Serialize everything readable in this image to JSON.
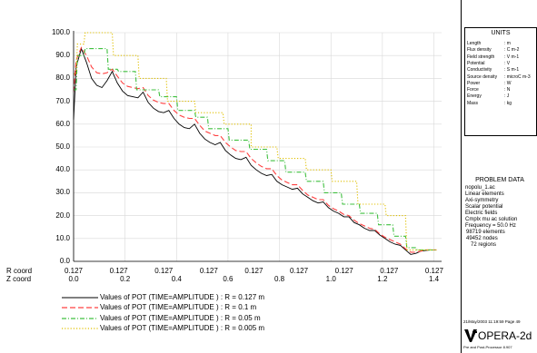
{
  "chart_data": {
    "type": "line",
    "title": "",
    "ylim": [
      0,
      100
    ],
    "y_ticks": [
      "0.0",
      "10.0",
      "20.0",
      "30.0",
      "40.0",
      "50.0",
      "60.0",
      "70.0",
      "80.0",
      "90.0",
      "100.0"
    ],
    "x_label_r": "R coord",
    "x_label_z": "Z coord",
    "r_ticks": [
      "0.127",
      "0.127",
      "0.127",
      "0.127",
      "0.127",
      "0.127",
      "0.127",
      "0.127",
      "0.127"
    ],
    "z_ticks": [
      "0.0",
      "0.2",
      "0.4",
      "0.6",
      "0.8",
      "1.0",
      "1.2",
      "1.4"
    ],
    "xlim": [
      0,
      1.43
    ],
    "grid": true,
    "series": [
      {
        "name": "Values of POT (TIME=AMPLITUDE   ) : R = 0.127 m",
        "color": "#000000",
        "dash": "solid",
        "x": [
          0.0,
          0.01,
          0.03,
          0.05,
          0.07,
          0.09,
          0.11,
          0.13,
          0.15,
          0.17,
          0.19,
          0.21,
          0.23,
          0.25,
          0.27,
          0.29,
          0.31,
          0.33,
          0.35,
          0.37,
          0.39,
          0.41,
          0.43,
          0.45,
          0.47,
          0.49,
          0.51,
          0.53,
          0.55,
          0.57,
          0.59,
          0.61,
          0.63,
          0.65,
          0.67,
          0.69,
          0.71,
          0.73,
          0.75,
          0.77,
          0.79,
          0.81,
          0.83,
          0.85,
          0.87,
          0.89,
          0.91,
          0.93,
          0.95,
          0.97,
          0.99,
          1.01,
          1.03,
          1.05,
          1.07,
          1.09,
          1.11,
          1.13,
          1.15,
          1.17,
          1.19,
          1.21,
          1.23,
          1.25,
          1.27,
          1.29,
          1.31,
          1.33,
          1.35,
          1.37,
          1.39,
          1.41
        ],
        "y": [
          62.0,
          85.0,
          93.0,
          87.0,
          80.0,
          77.0,
          76.0,
          79.0,
          83.0,
          78.0,
          74.5,
          72.5,
          72.0,
          71.5,
          74.0,
          69.5,
          67.0,
          65.5,
          65.0,
          66.0,
          62.5,
          60.0,
          58.5,
          58.0,
          60.0,
          56.0,
          53.5,
          52.0,
          51.0,
          52.0,
          48.5,
          46.5,
          45.0,
          44.5,
          45.5,
          42.0,
          40.0,
          38.5,
          37.5,
          38.0,
          35.0,
          33.5,
          32.5,
          31.5,
          32.0,
          29.5,
          28.0,
          26.5,
          25.5,
          26.0,
          23.5,
          22.0,
          21.0,
          19.5,
          19.5,
          17.0,
          16.0,
          14.5,
          13.5,
          13.5,
          11.5,
          10.0,
          8.5,
          7.5,
          7.0,
          5.0,
          3.0,
          3.5,
          4.5,
          4.8,
          5.0,
          5.0
        ]
      },
      {
        "name": "Values of POT (TIME=AMPLITUDE   ) : R = 0.1 m",
        "color": "#ff4040",
        "dash": "long-dash",
        "x": [
          0.0,
          0.01,
          0.03,
          0.05,
          0.07,
          0.09,
          0.11,
          0.13,
          0.15,
          0.17,
          0.19,
          0.21,
          0.23,
          0.25,
          0.27,
          0.29,
          0.31,
          0.33,
          0.35,
          0.37,
          0.39,
          0.41,
          0.43,
          0.45,
          0.47,
          0.49,
          0.51,
          0.53,
          0.55,
          0.57,
          0.59,
          0.61,
          0.63,
          0.65,
          0.67,
          0.69,
          0.71,
          0.73,
          0.75,
          0.77,
          0.79,
          0.81,
          0.83,
          0.85,
          0.87,
          0.89,
          0.91,
          0.93,
          0.95,
          0.97,
          0.99,
          1.01,
          1.03,
          1.05,
          1.07,
          1.09,
          1.11,
          1.13,
          1.15,
          1.17,
          1.19,
          1.21,
          1.23,
          1.25,
          1.27,
          1.29,
          1.31,
          1.33,
          1.35,
          1.37,
          1.39,
          1.41
        ],
        "y": [
          74.0,
          88.0,
          93.5,
          90.0,
          85.0,
          82.5,
          82.0,
          82.5,
          84.0,
          81.0,
          78.0,
          76.5,
          76.0,
          75.5,
          76.0,
          72.5,
          70.5,
          69.5,
          69.0,
          69.0,
          66.0,
          64.0,
          63.0,
          62.5,
          62.5,
          59.5,
          57.0,
          56.0,
          55.0,
          55.0,
          52.0,
          50.0,
          48.5,
          48.0,
          48.0,
          45.0,
          43.0,
          41.5,
          40.5,
          40.5,
          37.5,
          35.5,
          34.5,
          33.5,
          33.5,
          31.0,
          29.0,
          28.0,
          27.0,
          27.0,
          24.5,
          23.0,
          22.0,
          20.5,
          20.0,
          18.0,
          16.5,
          15.5,
          14.5,
          14.0,
          12.0,
          10.5,
          9.5,
          8.5,
          7.5,
          5.5,
          4.0,
          4.0,
          4.5,
          5.0,
          5.0,
          5.0
        ]
      },
      {
        "name": "Values of POT (TIME=AMPLITUDE   ) : R = 0.05 m",
        "color": "#40c040",
        "dash": "dash-dot",
        "x": [
          0.0,
          0.01,
          0.015,
          0.04,
          0.045,
          0.13,
          0.135,
          0.17,
          0.175,
          0.24,
          0.245,
          0.33,
          0.335,
          0.4,
          0.405,
          0.47,
          0.475,
          0.52,
          0.525,
          0.6,
          0.605,
          0.68,
          0.685,
          0.75,
          0.755,
          0.82,
          0.825,
          0.9,
          0.905,
          0.97,
          0.975,
          1.04,
          1.045,
          1.11,
          1.115,
          1.18,
          1.185,
          1.24,
          1.245,
          1.29,
          1.295,
          1.33,
          1.335,
          1.41
        ],
        "y": [
          75.0,
          75.0,
          90.0,
          90.0,
          93.0,
          93.0,
          84.0,
          84.0,
          83.0,
          83.0,
          75.0,
          75.0,
          72.0,
          72.0,
          66.0,
          66.0,
          63.0,
          63.0,
          58.0,
          58.0,
          53.0,
          53.0,
          49.0,
          49.0,
          44.0,
          44.0,
          39.0,
          39.0,
          35.0,
          35.0,
          30.0,
          30.0,
          25.0,
          25.0,
          21.0,
          21.0,
          16.0,
          16.0,
          11.0,
          11.0,
          6.0,
          6.0,
          5.0,
          5.0
        ]
      },
      {
        "name": "Values of POT (TIME=AMPLITUDE   ) : R = 0.005 m",
        "color": "#e0c000",
        "dash": "dotted",
        "x": [
          0.0,
          0.01,
          0.015,
          0.04,
          0.045,
          0.15,
          0.155,
          0.25,
          0.255,
          0.36,
          0.365,
          0.47,
          0.475,
          0.58,
          0.585,
          0.69,
          0.69,
          0.79,
          0.795,
          0.9,
          0.905,
          1.0,
          1.005,
          1.1,
          1.105,
          1.21,
          1.215,
          1.29,
          1.295,
          1.41
        ],
        "y": [
          82.0,
          82.0,
          95.0,
          95.0,
          100.0,
          100.0,
          90.0,
          90.0,
          80.0,
          80.0,
          70.0,
          70.0,
          65.0,
          65.0,
          60.0,
          60.0,
          50.0,
          50.0,
          45.0,
          45.0,
          40.0,
          40.0,
          35.0,
          35.0,
          25.0,
          25.0,
          20.0,
          20.0,
          5.0,
          5.0
        ]
      }
    ]
  },
  "units_panel": {
    "title": "UNITS",
    "rows": [
      {
        "label": "Length",
        "value": ": m"
      },
      {
        "label": "Flux density",
        "value": ": C m-2"
      },
      {
        "label": "Field strength",
        "value": ": V m-1"
      },
      {
        "label": "Potential",
        "value": ": V"
      },
      {
        "label": "Conductivity",
        "value": ": S m-1"
      },
      {
        "label": "Source density",
        "value": ": microC m-3"
      },
      {
        "label": "Power",
        "value": ": W"
      },
      {
        "label": "Force",
        "value": ": N"
      },
      {
        "label": "Energy",
        "value": ": J"
      },
      {
        "label": "Mass",
        "value": ": kg"
      }
    ]
  },
  "problem_panel": {
    "title": "PROBLEM DATA",
    "lines": [
      "nopolu_1.ac",
      "Linear elements",
      "Axi-symmetry",
      "Scalar potential",
      "Electric fields",
      "Cmplx mu ac solution",
      "Frequency = 50.0 Hz",
      "98719  elements",
      "49452  nodes",
      "72  regions"
    ]
  },
  "footer_panel": {
    "timestamp": "21/May/2003 11:19:59 Page 49",
    "logo": "OPERA-2d",
    "subtitle": "Pre and Post-Processor 8.907"
  }
}
